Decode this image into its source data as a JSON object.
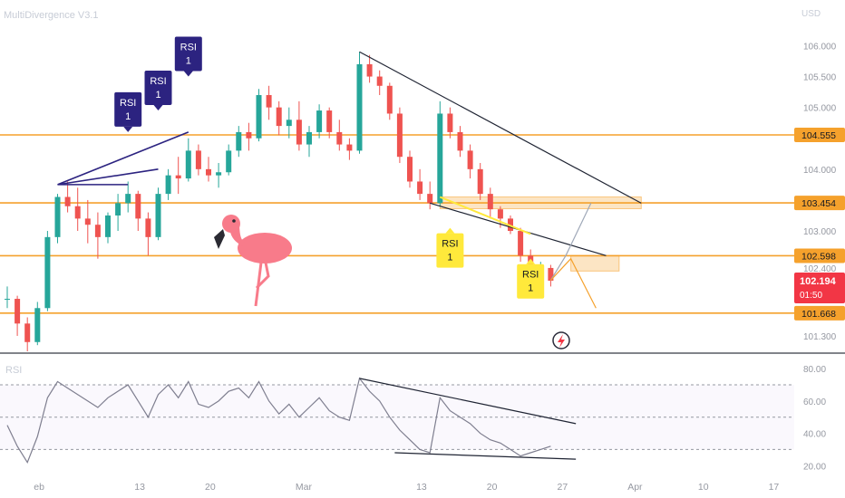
{
  "indicator_title": "MultiDivergence V3.1",
  "currency": "USD",
  "rsi_label": "RSI",
  "chart_data": {
    "type": "line",
    "price_axis": {
      "ticks": [
        "106.000",
        "105.500",
        "105.000",
        "104.000",
        "103.000",
        "102.400",
        "101.300"
      ],
      "tick_values": [
        106.0,
        105.5,
        105.0,
        104.0,
        103.0,
        102.4,
        101.3
      ],
      "ylim": [
        101.05,
        106.3
      ]
    },
    "levels": [
      {
        "label": "104.555",
        "value": 104.555,
        "color": "#f5a12c"
      },
      {
        "label": "103.454",
        "value": 103.454,
        "color": "#f5a12c"
      },
      {
        "label": "102.598",
        "value": 102.598,
        "color": "#f5a12c"
      },
      {
        "label": "101.668",
        "value": 101.668,
        "color": "#f5a12c"
      }
    ],
    "last_price": {
      "label": "102.194",
      "value": 102.194,
      "countdown": "01:50",
      "color": "#f23645"
    },
    "rsi_axis": {
      "ticks": [
        "80.00",
        "60.00",
        "40.00",
        "20.00"
      ],
      "tick_values": [
        80,
        60,
        40,
        20
      ],
      "ylim": [
        14,
        84
      ],
      "bands": [
        70,
        50,
        30
      ]
    },
    "x_axis": {
      "labels": [
        "eb",
        "13",
        "20",
        "Mar",
        "13",
        "20",
        "27",
        "Apr",
        "10",
        "17"
      ],
      "positions": [
        3,
        13,
        20,
        29,
        41,
        48,
        55,
        62,
        69,
        76
      ]
    },
    "divergence_labels": [
      {
        "text": "RSI",
        "sub": "1",
        "kind": "bearish",
        "index": 12,
        "price": 104.6
      },
      {
        "text": "RSI",
        "sub": "1",
        "kind": "bearish",
        "index": 15,
        "price": 104.95
      },
      {
        "text": "RSI",
        "sub": "1",
        "kind": "bearish",
        "index": 18,
        "price": 105.5
      },
      {
        "text": "RSI",
        "sub": "1",
        "kind": "bullish",
        "index": 44,
        "price": 103.05
      },
      {
        "text": "RSI",
        "sub": "1",
        "kind": "bullish",
        "index": 52,
        "price": 102.55
      }
    ],
    "colors": {
      "up": "#26a69a",
      "down": "#ef5350",
      "rsi": "#7e7e8f",
      "label_purple": "#2c2380",
      "label_yellow": "#ffe93b"
    },
    "candles": [
      [
        101.9,
        102.1,
        101.75,
        101.9
      ],
      [
        101.9,
        101.95,
        101.3,
        101.5
      ],
      [
        101.5,
        101.6,
        101.05,
        101.2
      ],
      [
        101.2,
        101.85,
        101.15,
        101.75
      ],
      [
        101.75,
        103.0,
        101.7,
        102.9
      ],
      [
        102.9,
        103.6,
        102.8,
        103.55
      ],
      [
        103.55,
        103.8,
        103.3,
        103.4
      ],
      [
        103.4,
        103.7,
        103.0,
        103.2
      ],
      [
        103.2,
        103.5,
        102.8,
        103.1
      ],
      [
        103.1,
        103.3,
        102.55,
        102.9
      ],
      [
        102.9,
        103.3,
        102.8,
        103.25
      ],
      [
        103.25,
        103.6,
        103.0,
        103.45
      ],
      [
        103.45,
        103.8,
        103.3,
        103.6
      ],
      [
        103.6,
        103.65,
        103.0,
        103.2
      ],
      [
        103.2,
        103.3,
        102.6,
        102.9
      ],
      [
        102.9,
        103.7,
        102.85,
        103.6
      ],
      [
        103.6,
        104.0,
        103.5,
        103.9
      ],
      [
        103.9,
        104.2,
        103.6,
        103.85
      ],
      [
        103.85,
        104.5,
        103.8,
        104.3
      ],
      [
        104.3,
        104.4,
        103.9,
        104.0
      ],
      [
        104.0,
        104.2,
        103.8,
        103.9
      ],
      [
        103.9,
        104.1,
        103.7,
        103.95
      ],
      [
        103.95,
        104.4,
        103.9,
        104.3
      ],
      [
        104.3,
        104.7,
        104.2,
        104.6
      ],
      [
        104.6,
        104.75,
        104.3,
        104.5
      ],
      [
        104.5,
        105.3,
        104.45,
        105.2
      ],
      [
        105.2,
        105.35,
        104.8,
        105.0
      ],
      [
        105.0,
        105.1,
        104.55,
        104.7
      ],
      [
        104.7,
        105.0,
        104.5,
        104.8
      ],
      [
        104.8,
        105.1,
        104.3,
        104.4
      ],
      [
        104.4,
        104.7,
        104.2,
        104.6
      ],
      [
        104.6,
        105.05,
        104.5,
        104.95
      ],
      [
        104.95,
        105.0,
        104.5,
        104.6
      ],
      [
        104.6,
        104.8,
        104.3,
        104.4
      ],
      [
        104.4,
        104.5,
        104.15,
        104.3
      ],
      [
        104.3,
        105.9,
        104.25,
        105.7
      ],
      [
        105.7,
        105.85,
        105.4,
        105.5
      ],
      [
        105.5,
        105.6,
        105.2,
        105.35
      ],
      [
        105.35,
        105.4,
        104.8,
        104.9
      ],
      [
        104.9,
        105.0,
        104.1,
        104.2
      ],
      [
        104.2,
        104.3,
        103.7,
        103.8
      ],
      [
        103.8,
        104.0,
        103.5,
        103.6
      ],
      [
        103.6,
        103.8,
        103.35,
        103.45
      ],
      [
        103.45,
        105.1,
        103.4,
        104.9
      ],
      [
        104.9,
        105.0,
        104.5,
        104.6
      ],
      [
        104.6,
        104.7,
        104.2,
        104.3
      ],
      [
        104.3,
        104.4,
        103.85,
        104.0
      ],
      [
        104.0,
        104.1,
        103.5,
        103.6
      ],
      [
        103.6,
        103.7,
        103.2,
        103.35
      ],
      [
        103.35,
        103.4,
        103.05,
        103.2
      ],
      [
        103.2,
        103.25,
        102.95,
        103.0
      ],
      [
        103.0,
        103.05,
        102.5,
        102.6
      ],
      [
        102.6,
        102.7,
        102.2,
        102.3
      ],
      [
        102.3,
        102.5,
        102.15,
        102.4
      ],
      [
        102.4,
        102.45,
        102.1,
        102.194
      ]
    ],
    "rsi_values": [
      45,
      32,
      22,
      38,
      62,
      72,
      68,
      64,
      60,
      56,
      62,
      66,
      70,
      60,
      50,
      64,
      70,
      62,
      72,
      58,
      56,
      60,
      66,
      68,
      62,
      72,
      60,
      52,
      58,
      50,
      56,
      62,
      54,
      50,
      48,
      74,
      66,
      60,
      50,
      42,
      36,
      30,
      28,
      62,
      54,
      50,
      46,
      40,
      36,
      34,
      30,
      26,
      28,
      30,
      32
    ]
  }
}
